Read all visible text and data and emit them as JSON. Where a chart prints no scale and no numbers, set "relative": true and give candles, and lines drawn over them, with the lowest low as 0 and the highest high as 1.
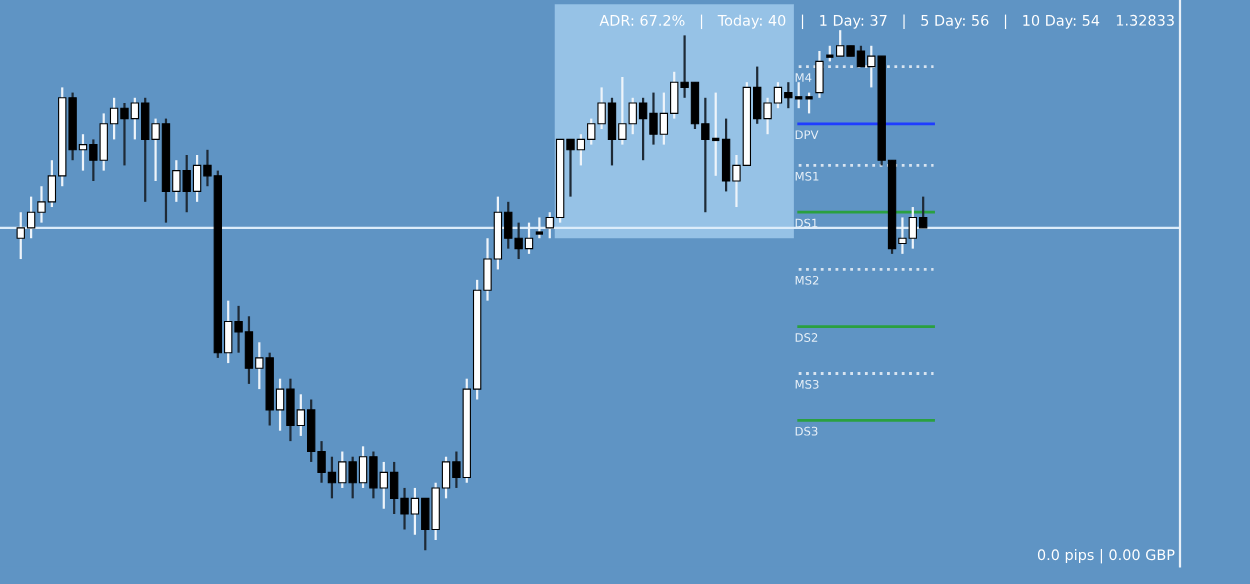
{
  "chart_data": {
    "type": "candlestick",
    "relative": true,
    "categories": [
      null,
      null,
      null,
      null,
      null,
      null,
      null,
      null,
      null,
      null,
      null,
      null,
      null,
      null,
      null,
      null,
      null,
      null,
      null,
      null,
      null,
      null,
      null,
      null,
      null,
      null,
      null,
      null,
      null,
      null,
      null,
      null,
      null,
      null,
      null,
      null,
      null,
      null,
      null,
      null,
      null,
      null,
      null,
      null,
      null,
      null,
      null,
      null,
      null,
      null,
      null,
      null,
      null,
      null,
      null,
      null,
      null,
      null,
      null,
      null,
      null,
      null,
      null,
      null,
      null,
      null,
      null,
      null,
      null,
      null,
      null,
      null,
      null,
      null,
      null,
      null,
      null,
      null,
      null,
      null,
      null,
      null,
      null,
      null,
      null,
      null,
      null,
      null
    ],
    "ohlc": [
      [
        0.6,
        0.65,
        0.56,
        0.62
      ],
      [
        0.62,
        0.68,
        0.6,
        0.65
      ],
      [
        0.65,
        0.7,
        0.63,
        0.67
      ],
      [
        0.67,
        0.75,
        0.66,
        0.72
      ],
      [
        0.72,
        0.89,
        0.7,
        0.87
      ],
      [
        0.87,
        0.88,
        0.75,
        0.77
      ],
      [
        0.77,
        0.8,
        0.73,
        0.78
      ],
      [
        0.78,
        0.79,
        0.71,
        0.75
      ],
      [
        0.75,
        0.84,
        0.73,
        0.82
      ],
      [
        0.82,
        0.87,
        0.79,
        0.85
      ],
      [
        0.85,
        0.86,
        0.74,
        0.83
      ],
      [
        0.83,
        0.87,
        0.79,
        0.86
      ],
      [
        0.86,
        0.87,
        0.67,
        0.79
      ],
      [
        0.79,
        0.83,
        0.71,
        0.82
      ],
      [
        0.82,
        0.83,
        0.63,
        0.69
      ],
      [
        0.69,
        0.75,
        0.67,
        0.73
      ],
      [
        0.73,
        0.76,
        0.65,
        0.69
      ],
      [
        0.69,
        0.76,
        0.67,
        0.74
      ],
      [
        0.74,
        0.77,
        0.7,
        0.72
      ],
      [
        0.72,
        0.73,
        0.37,
        0.38
      ],
      [
        0.38,
        0.48,
        0.36,
        0.44
      ],
      [
        0.44,
        0.47,
        0.38,
        0.42
      ],
      [
        0.42,
        0.45,
        0.32,
        0.35
      ],
      [
        0.35,
        0.4,
        0.31,
        0.37
      ],
      [
        0.37,
        0.38,
        0.24,
        0.27
      ],
      [
        0.27,
        0.33,
        0.23,
        0.31
      ],
      [
        0.31,
        0.33,
        0.21,
        0.24
      ],
      [
        0.24,
        0.3,
        0.22,
        0.27
      ],
      [
        0.27,
        0.29,
        0.17,
        0.19
      ],
      [
        0.19,
        0.21,
        0.13,
        0.15
      ],
      [
        0.15,
        0.18,
        0.1,
        0.13
      ],
      [
        0.13,
        0.19,
        0.12,
        0.17
      ],
      [
        0.17,
        0.18,
        0.1,
        0.13
      ],
      [
        0.13,
        0.2,
        0.12,
        0.18
      ],
      [
        0.18,
        0.19,
        0.1,
        0.12
      ],
      [
        0.12,
        0.17,
        0.08,
        0.15
      ],
      [
        0.15,
        0.17,
        0.07,
        0.1
      ],
      [
        0.1,
        0.12,
        0.04,
        0.07
      ],
      [
        0.07,
        0.12,
        0.03,
        0.1
      ],
      [
        0.1,
        0.1,
        0.0,
        0.04
      ],
      [
        0.04,
        0.13,
        0.02,
        0.12
      ],
      [
        0.12,
        0.18,
        0.1,
        0.17
      ],
      [
        0.17,
        0.19,
        0.12,
        0.14
      ],
      [
        0.14,
        0.33,
        0.13,
        0.31
      ],
      [
        0.31,
        0.52,
        0.29,
        0.5
      ],
      [
        0.5,
        0.6,
        0.48,
        0.56
      ],
      [
        0.56,
        0.68,
        0.54,
        0.65
      ],
      [
        0.65,
        0.67,
        0.58,
        0.6
      ],
      [
        0.6,
        0.63,
        0.56,
        0.58
      ],
      [
        0.58,
        0.63,
        0.57,
        0.6
      ],
      [
        0.61,
        0.64,
        0.6,
        0.61
      ],
      [
        0.62,
        0.65,
        0.6,
        0.64
      ],
      [
        0.64,
        0.79,
        0.63,
        0.79
      ],
      [
        0.79,
        0.79,
        0.68,
        0.77
      ],
      [
        0.77,
        0.8,
        0.74,
        0.79
      ],
      [
        0.79,
        0.83,
        0.78,
        0.82
      ],
      [
        0.82,
        0.89,
        0.81,
        0.86
      ],
      [
        0.86,
        0.87,
        0.74,
        0.79
      ],
      [
        0.79,
        0.91,
        0.78,
        0.82
      ],
      [
        0.82,
        0.87,
        0.8,
        0.86
      ],
      [
        0.86,
        0.87,
        0.75,
        0.83
      ],
      [
        0.84,
        0.88,
        0.78,
        0.8
      ],
      [
        0.8,
        0.88,
        0.78,
        0.84
      ],
      [
        0.84,
        0.92,
        0.83,
        0.9
      ],
      [
        0.9,
        0.99,
        0.87,
        0.89
      ],
      [
        0.9,
        0.9,
        0.81,
        0.82
      ],
      [
        0.82,
        0.87,
        0.65,
        0.79
      ],
      [
        0.79,
        0.88,
        0.72,
        0.79
      ],
      [
        0.79,
        0.83,
        0.69,
        0.71
      ],
      [
        0.71,
        0.76,
        0.66,
        0.74
      ],
      [
        0.74,
        0.9,
        0.74,
        0.89
      ],
      [
        0.89,
        0.93,
        0.82,
        0.83
      ],
      [
        0.83,
        0.87,
        0.8,
        0.86
      ],
      [
        0.86,
        0.9,
        0.85,
        0.89
      ],
      [
        0.88,
        0.9,
        0.85,
        0.87
      ],
      [
        0.87,
        0.9,
        0.85,
        0.87
      ],
      [
        0.87,
        0.88,
        0.84,
        0.87
      ],
      [
        0.88,
        0.96,
        0.87,
        0.94
      ],
      [
        0.95,
        0.97,
        0.94,
        0.95
      ],
      [
        0.95,
        1.0,
        0.95,
        0.97
      ],
      [
        0.97,
        0.97,
        0.95,
        0.95
      ],
      [
        0.96,
        0.97,
        0.93,
        0.93
      ],
      [
        0.93,
        0.97,
        0.89,
        0.95
      ],
      [
        0.95,
        0.95,
        0.74,
        0.75
      ],
      [
        0.75,
        0.75,
        0.57,
        0.58
      ],
      [
        0.59,
        0.64,
        0.57,
        0.6
      ],
      [
        0.6,
        0.66,
        0.58,
        0.64
      ],
      [
        0.64,
        0.68,
        0.62,
        0.62
      ]
    ],
    "ref_lines": [
      {
        "axis": "y",
        "value": 0.62,
        "color": "#dcecfa",
        "line_style": "solid"
      },
      {
        "axis": "y",
        "value": 0.93,
        "label": "M4",
        "color": "#d8e4f0",
        "line_style": "dotted"
      },
      {
        "axis": "y",
        "value": 0.82,
        "label": "DPV",
        "color": "#1f3dff",
        "line_style": "solid"
      },
      {
        "axis": "y",
        "value": 0.74,
        "label": "MS1",
        "color": "#d8e4f0",
        "line_style": "dotted"
      },
      {
        "axis": "y",
        "value": 0.65,
        "label": "DS1",
        "color": "#2aa040",
        "line_style": "solid"
      },
      {
        "axis": "y",
        "value": 0.54,
        "label": "MS2",
        "color": "#d8e4f0",
        "line_style": "dotted"
      },
      {
        "axis": "y",
        "value": 0.43,
        "label": "DS2",
        "color": "#2aa040",
        "line_style": "solid"
      },
      {
        "axis": "y",
        "value": 0.34,
        "label": "MS3",
        "color": "#d8e4f0",
        "line_style": "dotted"
      },
      {
        "axis": "y",
        "value": 0.25,
        "label": "DS3",
        "color": "#2aa040",
        "line_style": "solid"
      }
    ],
    "annotations": [
      "ADR: 67.2%   |   Today: 40   |   1 Day: 37   |   5 Day: 56   |   10 Day: 54",
      "1.32833",
      "0.0 pips | 0.00 GBP"
    ]
  }
}
